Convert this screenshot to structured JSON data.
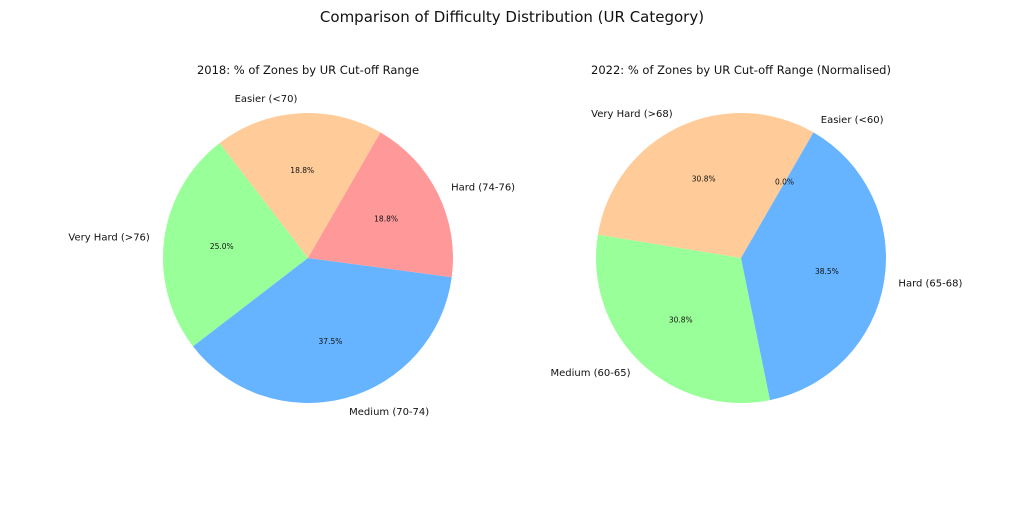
{
  "figure": {
    "title": "Comparison of Difficulty Distribution (UR Category)"
  },
  "chart_data": [
    {
      "type": "pie",
      "title": "2018: % of Zones by UR Cut-off Range",
      "slices": [
        {
          "label": "Easier (<70)",
          "value": 18.8,
          "pct_label": "18.8%",
          "color": "#ffcc99"
        },
        {
          "label": "Very Hard (>76)",
          "value": 25.0,
          "pct_label": "25.0%",
          "color": "#99ff99"
        },
        {
          "label": "Medium (70-74)",
          "value": 37.5,
          "pct_label": "37.5%",
          "color": "#66b3ff"
        },
        {
          "label": "Hard (74-76)",
          "value": 18.8,
          "pct_label": "18.8%",
          "color": "#ff9999"
        }
      ]
    },
    {
      "type": "pie",
      "title": "2022: % of Zones by UR Cut-off Range (Normalised)",
      "slices": [
        {
          "label": "Very Hard (>68)",
          "value": 30.8,
          "pct_label": "30.8%",
          "color": "#ffcc99"
        },
        {
          "label": "Medium (60-65)",
          "value": 30.8,
          "pct_label": "30.8%",
          "color": "#99ff99"
        },
        {
          "label": "Hard (65-68)",
          "value": 38.5,
          "pct_label": "38.5%",
          "color": "#66b3ff"
        },
        {
          "label": "Easier (<60)",
          "value": 0.0,
          "pct_label": "0.0%",
          "color": "#ff9999"
        }
      ]
    }
  ]
}
